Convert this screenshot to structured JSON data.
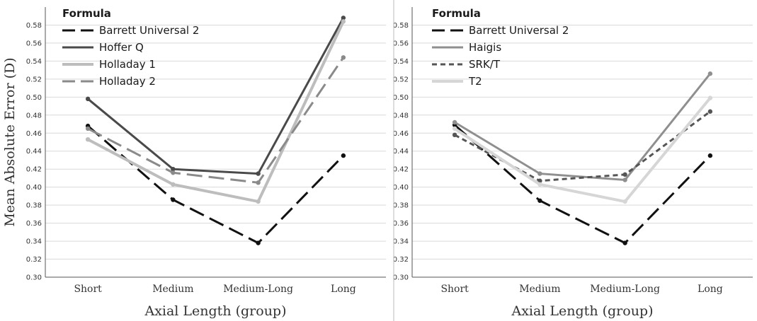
{
  "chart_data": [
    {
      "type": "line",
      "title": "",
      "xlabel": "Axial Length (group)",
      "ylabel": "Mean Absolute Error (D)",
      "categories": [
        "Short",
        "Medium",
        "Medium-Long",
        "Long"
      ],
      "ylim": [
        0.3,
        0.6
      ],
      "yticks": [
        "0.30",
        "0.32",
        "0.34",
        "0.36",
        "0.38",
        "0.40",
        "0.42",
        "0.44",
        "0.46",
        "0.48",
        "0.50",
        "0.52",
        "0.54",
        "0.56",
        "0.58"
      ],
      "grid": true,
      "legend_title": "Formula",
      "legend_position": "top-left",
      "series": [
        {
          "name": "Barrett Universal 2",
          "values": [
            0.468,
            0.386,
            0.338,
            0.435
          ],
          "color": "#111111",
          "dash": "long-dash",
          "width": 3
        },
        {
          "name": "Hoffer Q",
          "values": [
            0.498,
            0.42,
            0.415,
            0.588
          ],
          "color": "#4a4a4a",
          "dash": "solid",
          "width": 3
        },
        {
          "name": "Holladay 1",
          "values": [
            0.453,
            0.403,
            0.384,
            0.584
          ],
          "color": "#bdbdbd",
          "dash": "solid",
          "width": 4
        },
        {
          "name": "Holladay 2",
          "values": [
            0.465,
            0.416,
            0.405,
            0.544
          ],
          "color": "#8a8a8a",
          "dash": "long-dash",
          "width": 3
        }
      ]
    },
    {
      "type": "line",
      "title": "",
      "xlabel": "Axial Length (group)",
      "ylabel": "",
      "categories": [
        "Short",
        "Medium",
        "Medium-Long",
        "Long"
      ],
      "ylim": [
        0.3,
        0.6
      ],
      "yticks": [
        "0.30",
        "0.32",
        "0.34",
        "0.36",
        "0.38",
        "0.40",
        "0.42",
        "0.44",
        "0.46",
        "0.48",
        "0.50",
        "0.52",
        "0.54",
        "0.56",
        "0.58"
      ],
      "grid": true,
      "legend_title": "Formula",
      "legend_position": "top-left",
      "series": [
        {
          "name": "Barrett Universal 2",
          "values": [
            0.469,
            0.385,
            0.338,
            0.435
          ],
          "color": "#111111",
          "dash": "long-dash",
          "width": 3
        },
        {
          "name": "Haigis",
          "values": [
            0.472,
            0.415,
            0.408,
            0.526
          ],
          "color": "#8f8f8f",
          "dash": "solid",
          "width": 3
        },
        {
          "name": "SRK/T",
          "values": [
            0.458,
            0.407,
            0.414,
            0.484
          ],
          "color": "#555555",
          "dash": "short-dash",
          "width": 3
        },
        {
          "name": "T2",
          "values": [
            0.465,
            0.403,
            0.384,
            0.499
          ],
          "color": "#d6d6d6",
          "dash": "solid",
          "width": 4
        }
      ]
    }
  ]
}
